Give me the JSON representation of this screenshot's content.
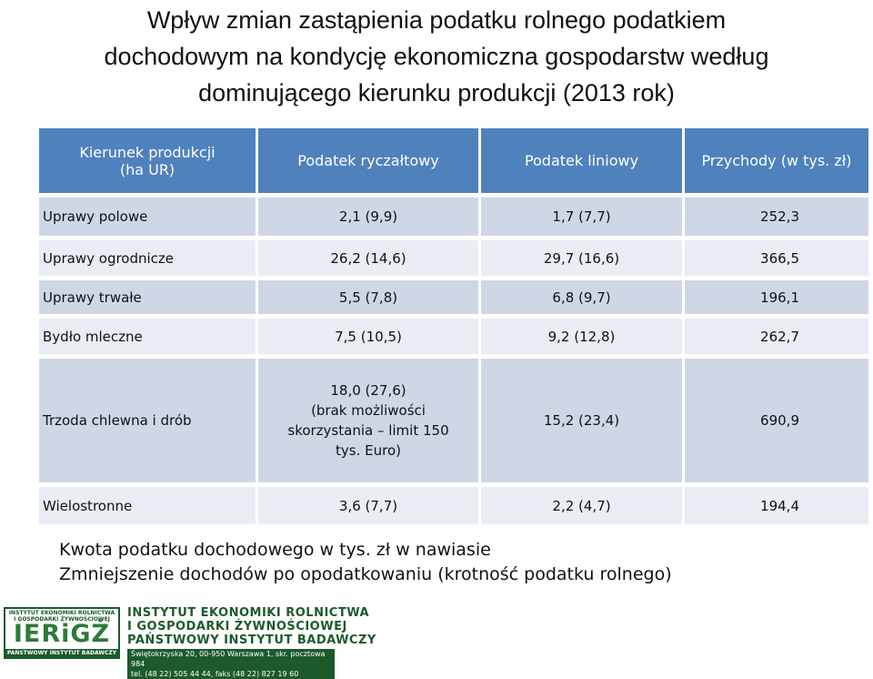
{
  "title": {
    "line1": "Wpływ zmian zastąpienia podatku rolnego podatkiem",
    "line2": "dochodowym na kondycję ekonomiczna gospodarstw według",
    "line3": "dominującego kierunku produkcji (2013 rok)"
  },
  "table": {
    "headers": {
      "col1_line1": "Kierunek produkcji",
      "col1_line2": "(ha UR)",
      "col2": "Podatek ryczałtowy",
      "col3": "Podatek liniowy",
      "col4": "Przychody (w tys. zł)"
    },
    "rows": [
      {
        "kierunek": "Uprawy polowe",
        "ryczaltowy": "2,1 (9,9)",
        "liniowy": "1,7 (7,7)",
        "przychody": "252,3"
      },
      {
        "kierunek": "Uprawy ogrodnicze",
        "ryczaltowy": "26,2 (14,6)",
        "liniowy": "29,7 (16,6)",
        "przychody": "366,5"
      },
      {
        "kierunek": "Uprawy trwałe",
        "ryczaltowy": "5,5 (7,8)",
        "liniowy": "6,8 (9,7)",
        "przychody": "196,1"
      },
      {
        "kierunek": "Bydło mleczne",
        "ryczaltowy": "7,5 (10,5)",
        "liniowy": "9,2 (12,8)",
        "przychody": "262,7"
      },
      {
        "kierunek": "Trzoda chlewna i drób",
        "ryczaltowy_line1": "18,0 (27,6)",
        "ryczaltowy_line2": "(brak możliwości",
        "ryczaltowy_line3": "skorzystania – limit 150",
        "ryczaltowy_line4": "tys. Euro)",
        "liniowy": "15,2 (23,4)",
        "przychody": "690,9"
      },
      {
        "kierunek": "Wielostronne",
        "ryczaltowy": "3,6 (7,7)",
        "liniowy": "2,2 (4,7)",
        "przychody": "194,4"
      }
    ]
  },
  "notes": {
    "line1": "Kwota podatku dochodowego w tys. zł w nawiasie",
    "line2": "Zmniejszenie dochodów po opodatkowaniu (krotność podatku rolnego)"
  },
  "logo": {
    "top_line1": "INSTYTUT EKONOMIKI ROLNICTWA",
    "top_line2": "I GOSPODARKI ŻYWNOŚCIOWEJ",
    "mark": "IERiGŻ",
    "bottom": "PAŃSTWOWY INSTYTUT BADAWCZY",
    "name_line1": "INSTYTUT EKONOMIKI ROLNICTWA",
    "name_line2": "I GOSPODARKI ŻYWNOŚCIOWEJ",
    "name_line3": "PAŃSTWOWY INSTYTUT BADAWCZY",
    "address": "Świętokrzyska 20, 00-950 Warszawa 1, skr. pocztowa 984",
    "phone": "tel. (48 22) 505 44 44, faks (48 22) 827 19 60"
  },
  "colors": {
    "header_bg": "#4f81bd",
    "row_odd_bg": "#cfd7e7",
    "row_even_bg": "#e9edf4",
    "logo_green": "#1c5a2c"
  }
}
